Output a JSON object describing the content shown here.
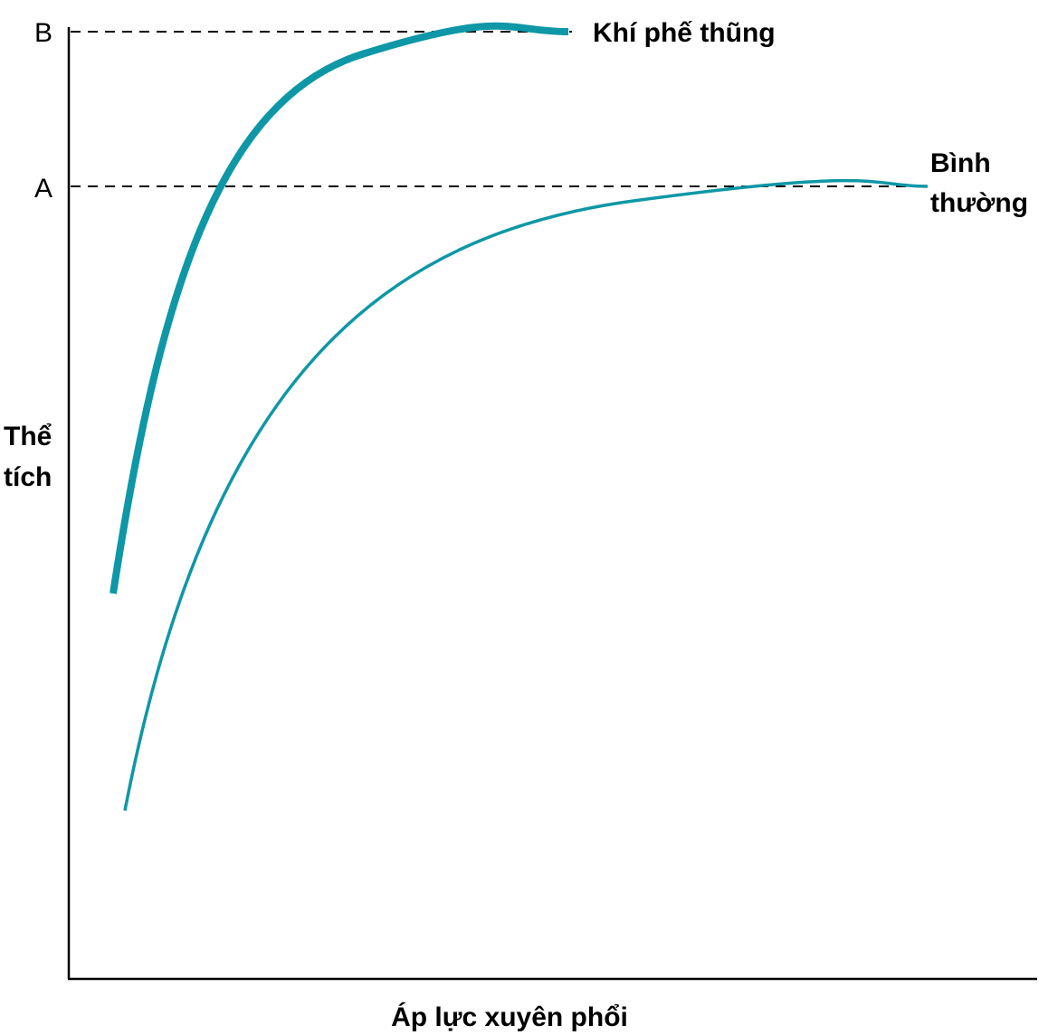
{
  "chart_data": {
    "type": "line",
    "xlabel": "Áp lực xuyên phổi",
    "ylabel_lines": [
      "Thể",
      "tích"
    ],
    "y_markers": [
      {
        "label": "B",
        "level": "emphysema_max"
      },
      {
        "label": "A",
        "level": "normal_max"
      }
    ],
    "grid": false,
    "axes_color": "#000000",
    "series_color": "#0e97a6",
    "series": [
      {
        "name_lines": [
          "Khí phế thũng"
        ],
        "marker": "B",
        "stroke": "thick",
        "curve_shape": "steep rise then plateau at B"
      },
      {
        "name_lines": [
          "Bình",
          "thường"
        ],
        "marker": "A",
        "stroke": "thin",
        "curve_shape": "gradual rise then plateau at A"
      }
    ]
  }
}
